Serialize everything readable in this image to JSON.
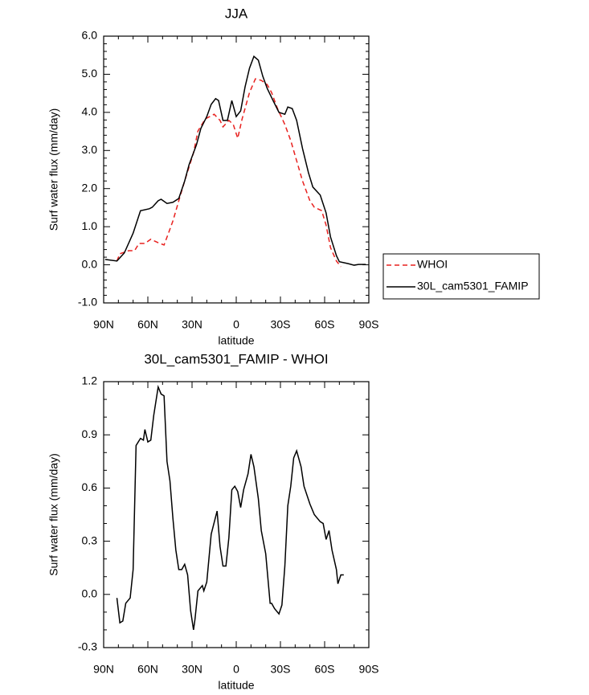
{
  "chart_data": [
    {
      "type": "line",
      "title": "JJA",
      "xlabel": "latitude",
      "ylabel": "Surf water flux (mm/day)",
      "xlim": [
        90,
        -90
      ],
      "xticks": [
        {
          "value": 90,
          "label": "90N"
        },
        {
          "value": 60,
          "label": "60N"
        },
        {
          "value": 30,
          "label": "30N"
        },
        0,
        {
          "value": -30,
          "label": "30S"
        },
        {
          "value": -60,
          "label": "60S"
        },
        {
          "value": -90,
          "label": "90S"
        }
      ],
      "ylim": [
        -1,
        6
      ],
      "yticks": [
        {
          "value": -1,
          "label": "-1.0"
        },
        {
          "value": 0,
          "label": "0.0"
        },
        {
          "value": 1,
          "label": "1.0"
        },
        {
          "value": 2,
          "label": "2.0"
        },
        {
          "value": 3,
          "label": "3.0"
        },
        {
          "value": 4,
          "label": "4.0"
        },
        {
          "value": 5,
          "label": "5.0"
        },
        {
          "value": 6,
          "label": "6.0"
        }
      ],
      "legend": "right",
      "series": [
        {
          "name": "WHOI",
          "color": "#e8211f",
          "line_style": "dashed",
          "x": [
            81,
            79,
            73,
            69,
            66,
            62,
            58,
            53,
            49,
            46,
            43,
            39,
            35,
            29,
            26,
            21,
            15,
            11,
            9,
            5,
            2,
            -1,
            -4,
            -9,
            -13,
            -17,
            -21,
            -24,
            -28,
            -33,
            -37,
            -41,
            -45,
            -50,
            -53,
            -58,
            -61,
            -64,
            -68,
            -71
          ],
          "values": [
            0.1,
            0.29,
            0.37,
            0.37,
            0.56,
            0.56,
            0.67,
            0.58,
            0.52,
            0.83,
            1.15,
            1.68,
            2.2,
            2.94,
            3.51,
            3.83,
            3.95,
            3.79,
            3.62,
            3.79,
            3.68,
            3.32,
            3.83,
            4.52,
            4.88,
            4.84,
            4.73,
            4.52,
            4.1,
            3.68,
            3.26,
            2.73,
            2.2,
            1.68,
            1.51,
            1.42,
            1.04,
            0.45,
            0.1,
            -0.05
          ]
        },
        {
          "name": "30L_cam5301_FAMIP",
          "color": "#000000",
          "line_style": "solid",
          "x": [
            89,
            81,
            76,
            70,
            65,
            59,
            57,
            53,
            51,
            47,
            43,
            39,
            35,
            32,
            27,
            24,
            20,
            17,
            14,
            12,
            9,
            6,
            3,
            0,
            -3,
            -6,
            -9,
            -12,
            -15,
            -18,
            -21,
            -25,
            -29,
            -33,
            -35,
            -38,
            -41,
            -45,
            -49,
            -52,
            -57,
            -61,
            -64,
            -68,
            -70,
            -76,
            -80,
            -83,
            -88
          ],
          "values": [
            0.14,
            0.1,
            0.31,
            0.83,
            1.42,
            1.47,
            1.51,
            1.68,
            1.72,
            1.61,
            1.64,
            1.74,
            2.2,
            2.63,
            3.15,
            3.58,
            3.89,
            4.21,
            4.36,
            4.31,
            3.79,
            3.79,
            4.31,
            3.89,
            4.04,
            4.67,
            5.16,
            5.47,
            5.37,
            4.95,
            4.63,
            4.31,
            4.0,
            3.95,
            4.14,
            4.1,
            3.79,
            3.05,
            2.42,
            2.04,
            1.83,
            1.36,
            0.73,
            0.24,
            0.08,
            0.03,
            -0.01,
            0.01,
            0.01
          ]
        }
      ]
    },
    {
      "type": "line",
      "title": "30L_cam5301_FAMIP - WHOI",
      "xlabel": "latitude",
      "ylabel": "Surf water flux (mm/day)",
      "xlim": [
        90,
        -90
      ],
      "xticks": [
        {
          "value": 90,
          "label": "90N"
        },
        {
          "value": 60,
          "label": "60N"
        },
        {
          "value": 30,
          "label": "30N"
        },
        0,
        {
          "value": -30,
          "label": "30S"
        },
        {
          "value": -60,
          "label": "60S"
        },
        {
          "value": -90,
          "label": "90S"
        }
      ],
      "ylim": [
        -0.3,
        1.2
      ],
      "yticks": [
        {
          "value": -0.3,
          "label": "-0.3"
        },
        {
          "value": 0,
          "label": "0.0"
        },
        {
          "value": 0.3,
          "label": "0.3"
        },
        {
          "value": 0.6,
          "label": "0.6"
        },
        {
          "value": 0.9,
          "label": "0.9"
        },
        {
          "value": 1.2,
          "label": "1.2"
        }
      ],
      "series": [
        {
          "color": "#000000",
          "line_style": "solid",
          "x": [
            81,
            79,
            77,
            75,
            72,
            70,
            68,
            65,
            63,
            62,
            60,
            58,
            56,
            53,
            51,
            49,
            47,
            45,
            43,
            41,
            39,
            37,
            35,
            33,
            31,
            29,
            28,
            26,
            23,
            22,
            20,
            17,
            13,
            11,
            9,
            7,
            5,
            3,
            1,
            -1,
            -3,
            -5,
            -8,
            -10,
            -12,
            -15,
            -17,
            -20,
            -23,
            -24,
            -26,
            -29,
            -31,
            -33,
            -35,
            -37,
            -39,
            -41,
            -44,
            -46,
            -50,
            -53,
            -57,
            -59,
            -61,
            -63,
            -65,
            -68,
            -69,
            -71,
            -73
          ],
          "values": [
            -0.02,
            -0.16,
            -0.15,
            -0.05,
            -0.02,
            0.14,
            0.84,
            0.88,
            0.87,
            0.93,
            0.86,
            0.87,
            1.01,
            1.17,
            1.13,
            1.12,
            0.75,
            0.64,
            0.43,
            0.25,
            0.14,
            0.14,
            0.17,
            0.11,
            -0.09,
            -0.2,
            -0.14,
            0.02,
            0.05,
            0.02,
            0.07,
            0.34,
            0.47,
            0.27,
            0.16,
            0.16,
            0.32,
            0.59,
            0.61,
            0.58,
            0.49,
            0.59,
            0.68,
            0.79,
            0.72,
            0.54,
            0.36,
            0.23,
            -0.05,
            -0.05,
            -0.08,
            -0.11,
            -0.06,
            0.16,
            0.5,
            0.61,
            0.77,
            0.81,
            0.72,
            0.61,
            0.51,
            0.45,
            0.41,
            0.4,
            0.31,
            0.36,
            0.25,
            0.14,
            0.06,
            0.11,
            0.11
          ]
        }
      ]
    }
  ]
}
